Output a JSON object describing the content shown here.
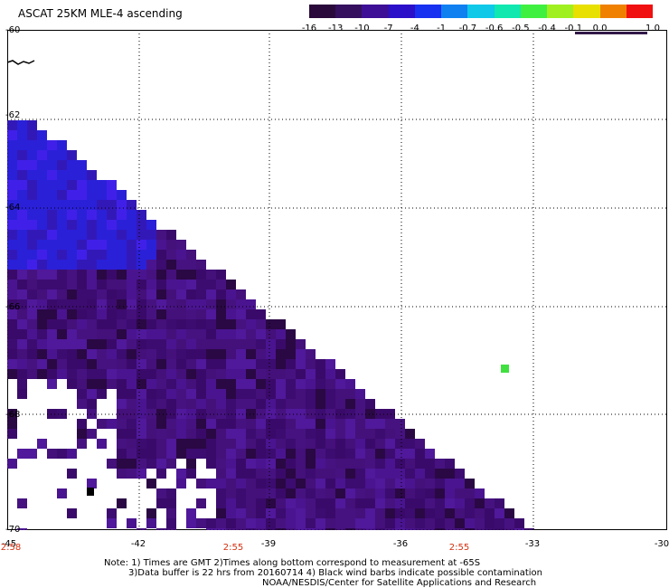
{
  "header": {
    "title": "ASCAT 25KM MLE-4 ascending"
  },
  "colorbar": {
    "labels": [
      "-16",
      "-13",
      "-10",
      "-7",
      "-4",
      "-1",
      "-0.7",
      "-0.6",
      "-0.5",
      "-0.4",
      "-0.1",
      "0.0",
      "1.0"
    ],
    "colors": [
      "#2a0a3a",
      "#34105e",
      "#3c0f96",
      "#2a10c8",
      "#1830f0",
      "#1080f0",
      "#10c8e8",
      "#10e8b0",
      "#40f040",
      "#a0f020",
      "#e8e000",
      "#f08000",
      "#f01010"
    ]
  },
  "map": {
    "lat_labels": [
      "-60",
      "-62",
      "-64",
      "-66",
      "-68",
      "-70"
    ],
    "lon_labels": [
      "-45",
      "-42",
      "-39",
      "-36",
      "-33",
      "-30"
    ],
    "time_labels": [
      "2:58",
      "2:55",
      "2:55"
    ],
    "colors": {
      "land_contamination": "#000000",
      "background": "#ffffff",
      "grid": "#000000",
      "highlight": "#40e040"
    }
  },
  "notes": {
    "line1": "Note: 1) Times are GMT 2)Times along bottom correspond to measurement at -65S",
    "line2": "3)Data buffer is 22 hrs from 20160714 4) Black wind barbs indicate possible contamination",
    "line3": "NOAA/NESDIS/Center for Satellite Applications and Research"
  }
}
